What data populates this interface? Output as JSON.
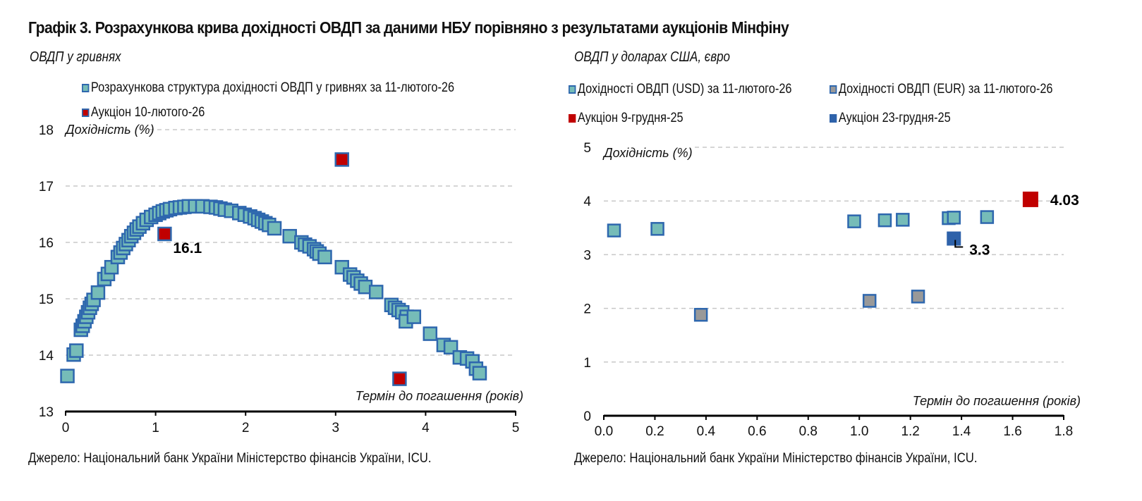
{
  "title": "Графік 3. Розрахункова крива дохідності ОВДП за даними НБУ порівняно з результатами аукціонів Мінфіну",
  "colors": {
    "curve_fill": "#76bcb8",
    "marker_border": "#2e67ae",
    "auction_red": "#c00000",
    "auction_blue": "#2e62aa",
    "eur_fill": "#999999",
    "grid": "#c8c8c8",
    "axis": "#000000"
  },
  "left_panel": {
    "subtitle": "ОВДП у гривнях",
    "legend": [
      {
        "label": "Розрахункова структура дохідності ОВДП у гривнях за 11-лютого-26",
        "series": "curve"
      },
      {
        "label": "Аукціон 10-лютого-26",
        "series": "auction"
      }
    ],
    "source": "Джерело: Національний банк України Міністерство фінансів України, ICU."
  },
  "right_panel": {
    "subtitle": "ОВДП у доларах США, євро",
    "legend": [
      {
        "label": "Дохідності ОВДП (USD) за 11-лютого-26",
        "series": "usd"
      },
      {
        "label": "Дохідності ОВДП (EUR) за 11-лютого-26",
        "series": "eur"
      },
      {
        "label": "Аукціон 9-грудня-25",
        "series": "auction_dec9"
      },
      {
        "label": "Аукціон 23-грудня-25",
        "series": "auction_dec23"
      }
    ],
    "source": "Джерело: Національний банк України Міністерство фінансів України, ICU."
  },
  "chart_data": [
    {
      "type": "scatter",
      "title": "ОВДП у гривнях",
      "xlabel": "Термін до погашення (років)",
      "ylabel": "Дохідність (%)",
      "xlim": [
        0,
        5
      ],
      "ylim": [
        13,
        18
      ],
      "xticks": [
        "0",
        "1",
        "2",
        "3",
        "4",
        "5"
      ],
      "yticks": [
        "13",
        "14",
        "15",
        "16",
        "17",
        "18"
      ],
      "grid": "horizontal dashed",
      "legend_position": "top-left",
      "series": [
        {
          "name": "Розрахункова структура дохідності ОВДП у гривнях за 11-лютого-26",
          "key": "curve",
          "points": [
            [
              0.02,
              13.63
            ],
            [
              0.09,
              14.01
            ],
            [
              0.12,
              14.08
            ],
            [
              0.17,
              14.45
            ],
            [
              0.19,
              14.52
            ],
            [
              0.21,
              14.6
            ],
            [
              0.23,
              14.68
            ],
            [
              0.25,
              14.76
            ],
            [
              0.27,
              14.84
            ],
            [
              0.29,
              14.91
            ],
            [
              0.31,
              14.98
            ],
            [
              0.36,
              15.11
            ],
            [
              0.43,
              15.35
            ],
            [
              0.47,
              15.44
            ],
            [
              0.51,
              15.56
            ],
            [
              0.58,
              15.74
            ],
            [
              0.61,
              15.82
            ],
            [
              0.64,
              15.9
            ],
            [
              0.67,
              15.97
            ],
            [
              0.7,
              16.04
            ],
            [
              0.73,
              16.11
            ],
            [
              0.76,
              16.17
            ],
            [
              0.79,
              16.23
            ],
            [
              0.82,
              16.28
            ],
            [
              0.86,
              16.34
            ],
            [
              0.9,
              16.4
            ],
            [
              0.95,
              16.45
            ],
            [
              1.0,
              16.49
            ],
            [
              1.04,
              16.52
            ],
            [
              1.08,
              16.55
            ],
            [
              1.12,
              16.57
            ],
            [
              1.16,
              16.59
            ],
            [
              1.22,
              16.61
            ],
            [
              1.27,
              16.62
            ],
            [
              1.32,
              16.63
            ],
            [
              1.37,
              16.64
            ],
            [
              1.44,
              16.64
            ],
            [
              1.52,
              16.64
            ],
            [
              1.61,
              16.63
            ],
            [
              1.67,
              16.62
            ],
            [
              1.72,
              16.6
            ],
            [
              1.77,
              16.58
            ],
            [
              1.84,
              16.56
            ],
            [
              1.93,
              16.52
            ],
            [
              1.99,
              16.49
            ],
            [
              2.05,
              16.46
            ],
            [
              2.1,
              16.43
            ],
            [
              2.14,
              16.4
            ],
            [
              2.18,
              16.37
            ],
            [
              2.22,
              16.34
            ],
            [
              2.26,
              16.31
            ],
            [
              2.32,
              16.25
            ],
            [
              2.49,
              16.11
            ],
            [
              2.62,
              16.0
            ],
            [
              2.66,
              15.96
            ],
            [
              2.71,
              15.93
            ],
            [
              2.76,
              15.88
            ],
            [
              2.79,
              15.84
            ],
            [
              2.82,
              15.8
            ],
            [
              2.88,
              15.74
            ],
            [
              3.07,
              15.56
            ],
            [
              3.16,
              15.43
            ],
            [
              3.2,
              15.38
            ],
            [
              3.24,
              15.32
            ],
            [
              3.28,
              15.27
            ],
            [
              3.33,
              15.21
            ],
            [
              3.45,
              15.12
            ],
            [
              3.62,
              14.89
            ],
            [
              3.66,
              14.84
            ],
            [
              3.7,
              14.8
            ],
            [
              3.74,
              14.76
            ],
            [
              3.79,
              14.68
            ],
            [
              3.78,
              14.6
            ],
            [
              3.87,
              14.68
            ],
            [
              4.05,
              14.38
            ],
            [
              4.2,
              14.18
            ],
            [
              4.28,
              14.14
            ],
            [
              4.38,
              13.96
            ],
            [
              4.46,
              13.94
            ],
            [
              4.52,
              13.89
            ],
            [
              4.56,
              13.76
            ],
            [
              4.6,
              13.68
            ]
          ]
        },
        {
          "name": "Аукціон 10-лютого-26",
          "key": "auction",
          "points": [
            [
              1.1,
              16.15
            ],
            [
              3.07,
              17.47
            ],
            [
              3.71,
              13.58
            ]
          ],
          "labels": [
            {
              "index": 0,
              "text": "16.1"
            }
          ]
        }
      ]
    },
    {
      "type": "scatter",
      "title": "ОВДП у доларах США, євро",
      "xlabel": "Термін до погашення (років)",
      "ylabel": "Дохідність (%)",
      "xlim": [
        0,
        1.8
      ],
      "ylim": [
        0,
        5
      ],
      "xticks": [
        "0.0",
        "0.2",
        "0.4",
        "0.6",
        "0.8",
        "1.0",
        "1.2",
        "1.4",
        "1.6",
        "1.8"
      ],
      "yticks": [
        "0",
        "1",
        "2",
        "3",
        "4",
        "5"
      ],
      "grid": "horizontal dashed",
      "legend_position": "top",
      "series": [
        {
          "name": "Дохідності ОВДП (USD) за 11-лютого-26",
          "key": "usd",
          "points": [
            [
              0.04,
              3.45
            ],
            [
              0.21,
              3.48
            ],
            [
              0.98,
              3.62
            ],
            [
              1.1,
              3.64
            ],
            [
              1.17,
              3.65
            ],
            [
              1.35,
              3.68
            ],
            [
              1.37,
              3.69
            ],
            [
              1.5,
              3.7
            ]
          ]
        },
        {
          "name": "Дохідності ОВДП (EUR) за 11-лютого-26",
          "key": "eur",
          "points": [
            [
              0.38,
              1.88
            ],
            [
              1.04,
              2.14
            ],
            [
              1.23,
              2.22
            ]
          ]
        },
        {
          "name": "Аукціон 9-грудня-25",
          "key": "auction_dec9",
          "points": [
            [
              1.67,
              4.03
            ]
          ],
          "labels": [
            {
              "index": 0,
              "text": "4.03"
            }
          ]
        },
        {
          "name": "Аукціон 23-грудня-25",
          "key": "auction_dec23",
          "points": [
            [
              1.37,
              3.3
            ]
          ],
          "labels": [
            {
              "index": 0,
              "text": "3.3"
            }
          ]
        }
      ]
    }
  ]
}
